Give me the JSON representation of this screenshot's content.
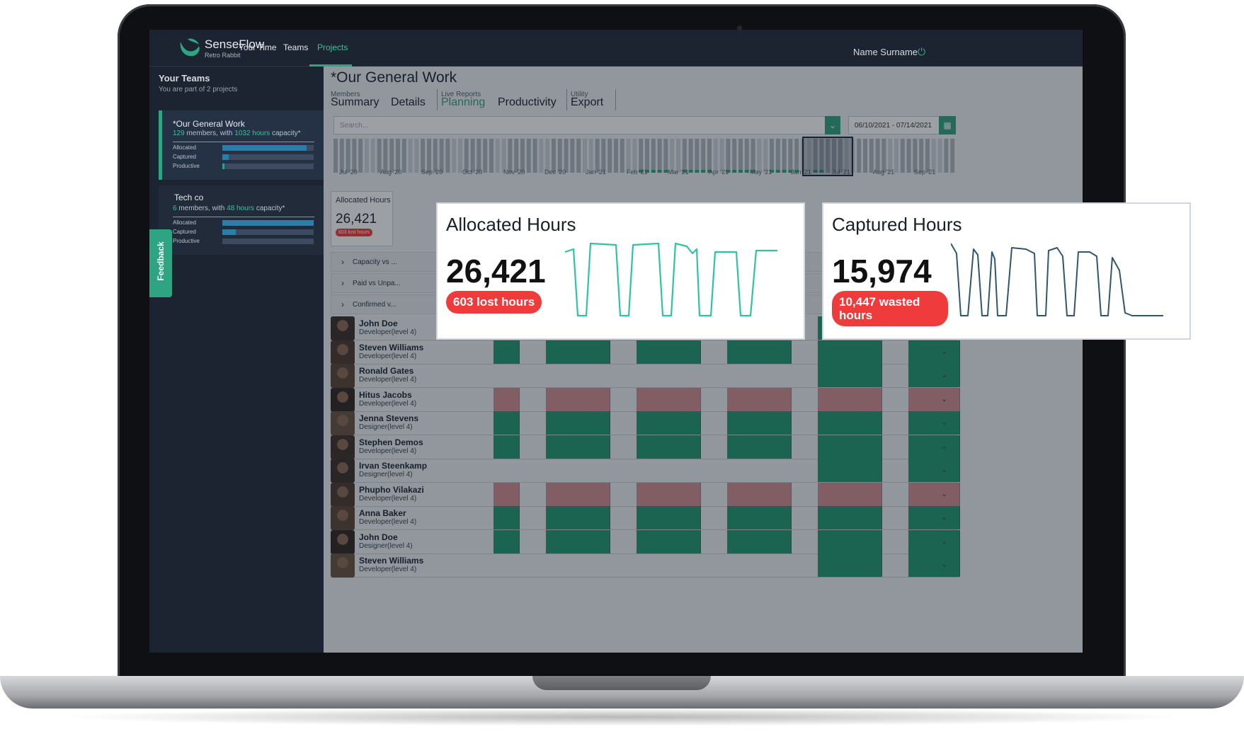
{
  "app": {
    "brand": "SenseFlow",
    "brand_sub": "Retro Rabbit",
    "user_name": "Name Surname"
  },
  "nav": [
    {
      "label": "Your Time"
    },
    {
      "label": "Teams"
    },
    {
      "label": "Projects",
      "active": true
    }
  ],
  "sidebar": {
    "title": "Your Teams",
    "subtitle": "You are part of 2 projects",
    "teams": [
      {
        "name": "*Our General Work",
        "members": "129",
        "members_text": " members, with ",
        "hours": "1032 hours",
        "capacity_text": " capacity*",
        "metrics": [
          {
            "label": "Allocated",
            "level": 0.92
          },
          {
            "label": "Captured",
            "level": 0.07
          },
          {
            "label": "Productive",
            "level": 0.02
          }
        ]
      },
      {
        "name": "Tech co",
        "members": "6",
        "members_text": " members, with ",
        "hours": "48 hours",
        "capacity_text": " capacity*",
        "metrics": [
          {
            "label": "Allocated",
            "level": 1.0
          },
          {
            "label": "Captured",
            "level": 0.15
          },
          {
            "label": "Productive",
            "level": 0.0
          }
        ]
      }
    ],
    "feedback_label": "Feedback"
  },
  "main": {
    "title": "*Our General Work",
    "tab_groups": [
      {
        "label": "Members",
        "tabs": [
          "Summary",
          "Details"
        ]
      },
      {
        "label": "Live Reports",
        "tabs": [
          "Planning",
          "Productivity"
        ]
      },
      {
        "label": "Utility",
        "tabs": [
          "Export"
        ]
      }
    ],
    "active_tab": "Planning",
    "search_placeholder": "Search...",
    "date_range": "06/10/2021 - 07/14/2021",
    "timeline_months": [
      "Jul '20",
      "Aug '20",
      "Sep '20",
      "Oct '20",
      "Nov '20",
      "Dec '20",
      "Jan '21",
      "Feb '21",
      "Mar '21",
      "Apr '21",
      "May '21",
      "Jun '21",
      "Jul '21",
      "Aug '21",
      "Sep '21"
    ],
    "mini_card": {
      "title": "Allocated Hours",
      "value": "26,421",
      "badge": "603 lost hours"
    },
    "accordions": [
      "Capacity vs ...",
      "Paid vs Unpa...",
      "Confirmed v..."
    ],
    "people": [
      {
        "name": "John Doe",
        "role": "Developer(level 4)",
        "status": "green"
      },
      {
        "name": "Steven Williams",
        "role": "Developer(level 4)",
        "status": "green"
      },
      {
        "name": "Ronald Gates",
        "role": "Developer(level 4)",
        "status": "partial"
      },
      {
        "name": "Hitus Jacobs",
        "role": "Developer(level 4)",
        "status": "red"
      },
      {
        "name": "Jenna Stevens",
        "role": "Designer(level 4)",
        "status": "green"
      },
      {
        "name": "Stephen Demos",
        "role": "Developer(level 4)",
        "status": "green"
      },
      {
        "name": "Irvan Steenkamp",
        "role": "Designer(level 4)",
        "status": "partial"
      },
      {
        "name": "Phupho Vilakazi",
        "role": "Developer(level 4)",
        "status": "red"
      },
      {
        "name": "Anna Baker",
        "role": "Developer(level 4)",
        "status": "green"
      },
      {
        "name": "John Doe",
        "role": "Designer(level 4)",
        "status": "green"
      },
      {
        "name": "Steven Williams",
        "role": "Developer(level 4)",
        "status": "partial"
      }
    ]
  },
  "popups": [
    {
      "title": "Allocated Hours",
      "value": "26,421",
      "badge": "603 lost hours",
      "color": "#2ec4a0"
    },
    {
      "title": "Captured Hours",
      "value": "15,974",
      "badge": "10,447 wasted hours",
      "color": "#2f5670"
    }
  ],
  "colors": {
    "accent": "#2fa483",
    "danger": "#ef3b3b",
    "cell_green": "#1f9a72",
    "cell_red": "#cf8f93"
  }
}
